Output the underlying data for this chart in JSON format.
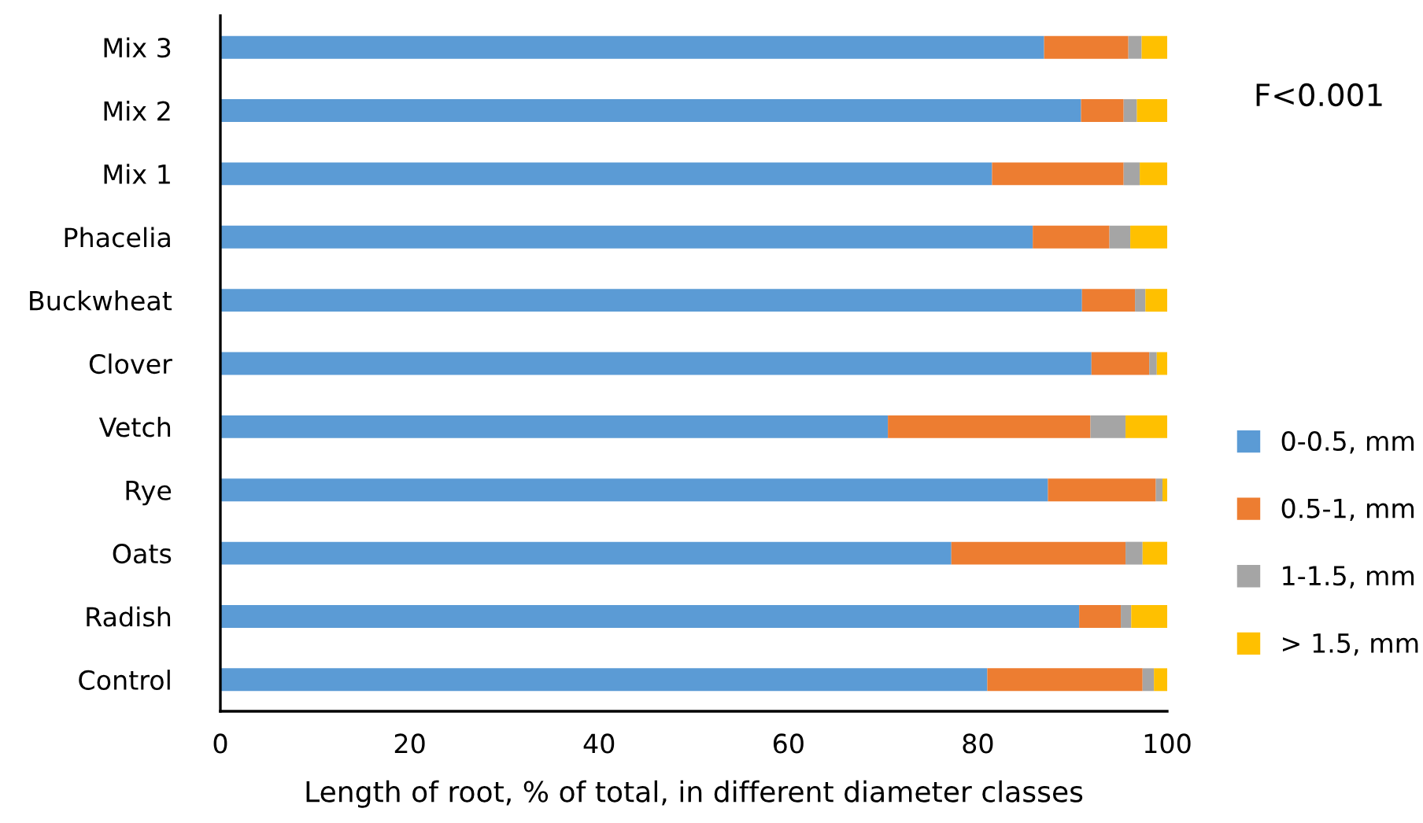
{
  "chart_data": {
    "type": "bar",
    "orientation": "horizontal",
    "stacked": true,
    "xlabel": "Length of root, % of total, in different diameter classes",
    "categories": [
      "Mix 3",
      "Mix 2",
      "Mix 1",
      "Phacelia",
      "Buckwheat",
      "Clover",
      "Vetch",
      "Rye",
      "Oats",
      "Radish",
      "Control"
    ],
    "series": [
      {
        "name": "0-0.5, mm",
        "color": "#5b9bd5",
        "values": [
          87.0,
          90.9,
          81.5,
          85.8,
          91.0,
          92.0,
          70.5,
          87.4,
          77.2,
          90.7,
          81.0
        ]
      },
      {
        "name": "0.5-1, mm",
        "color": "#ed7d31",
        "values": [
          8.9,
          4.5,
          13.9,
          8.1,
          5.6,
          6.1,
          21.4,
          11.4,
          18.4,
          4.4,
          16.4
        ]
      },
      {
        "name": "1-1.5, mm",
        "color": "#a5a5a5",
        "values": [
          1.4,
          1.4,
          1.7,
          2.2,
          1.1,
          0.8,
          3.7,
          0.7,
          1.8,
          1.1,
          1.2
        ]
      },
      {
        "name": "> 1.5, mm",
        "color": "#ffc000",
        "values": [
          2.7,
          3.2,
          2.9,
          3.9,
          2.3,
          1.1,
          4.4,
          0.5,
          2.6,
          3.8,
          1.4
        ]
      }
    ],
    "xlim": [
      0,
      100
    ],
    "xticks": [
      0,
      20,
      40,
      60,
      80,
      100
    ],
    "annotations": [
      "F<0.001"
    ],
    "grid": false,
    "legend": "right"
  }
}
